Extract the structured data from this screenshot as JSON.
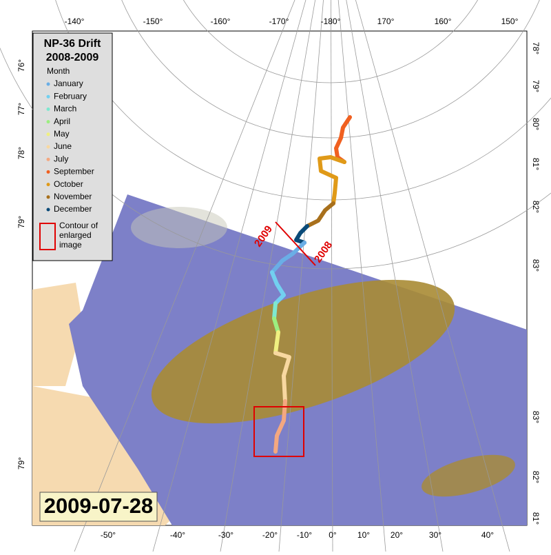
{
  "legend": {
    "title": "NP-36 Drift",
    "subtitle": "2008-2009",
    "heading": "Month",
    "items": [
      {
        "label": "January",
        "color": "#6aaee6"
      },
      {
        "label": "February",
        "color": "#72d0f0"
      },
      {
        "label": "March",
        "color": "#7ee8d0"
      },
      {
        "label": "April",
        "color": "#9cee80"
      },
      {
        "label": "May",
        "color": "#f0f080"
      },
      {
        "label": "June",
        "color": "#f8d8a0"
      },
      {
        "label": "July",
        "color": "#f4a880"
      },
      {
        "label": "September",
        "color": "#f06020"
      },
      {
        "label": "October",
        "color": "#e09a18"
      },
      {
        "label": "November",
        "color": "#a8701c"
      },
      {
        "label": "December",
        "color": "#0a4a78"
      }
    ],
    "contour": "Contour of enlarged image"
  },
  "date": "2009-07-28",
  "boundary": {
    "before": "2009",
    "after": "2008"
  },
  "graticule": {
    "top": [
      "-140°",
      "-150°",
      "-160°",
      "-170°",
      "-180°",
      "170°",
      "160°",
      "150°"
    ],
    "bottom": [
      "-50°",
      "-40°",
      "-30°",
      "-20°",
      "-10°",
      "0°",
      "10°",
      "20°",
      "30°",
      "40°"
    ],
    "left": [
      "76°",
      "77°",
      "78°",
      "79°",
      "79°"
    ],
    "right": [
      "78°",
      "79°",
      "80°",
      "81°",
      "82°",
      "83°",
      "83°",
      "82°",
      "81°"
    ]
  }
}
